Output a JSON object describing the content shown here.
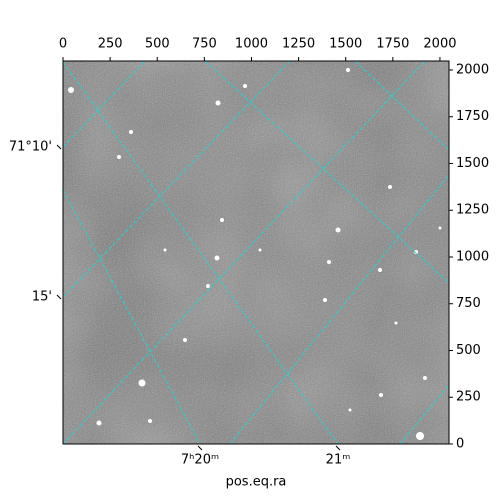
{
  "chart_data": {
    "type": "image",
    "xlabel": "pos.eq.ra",
    "xlim": [
      0,
      2048
    ],
    "xticks": [
      0,
      250,
      500,
      750,
      1000,
      1250,
      1500,
      1750,
      2000
    ],
    "ylim": [
      0,
      2048
    ],
    "yticks": [
      0,
      250,
      500,
      750,
      1000,
      1250,
      1500,
      1750,
      2000
    ],
    "ra_labels": [
      "7ʰ20ᵐ",
      "21ᵐ"
    ],
    "dec_labels": [
      "71°10'",
      "15'"
    ]
  }
}
